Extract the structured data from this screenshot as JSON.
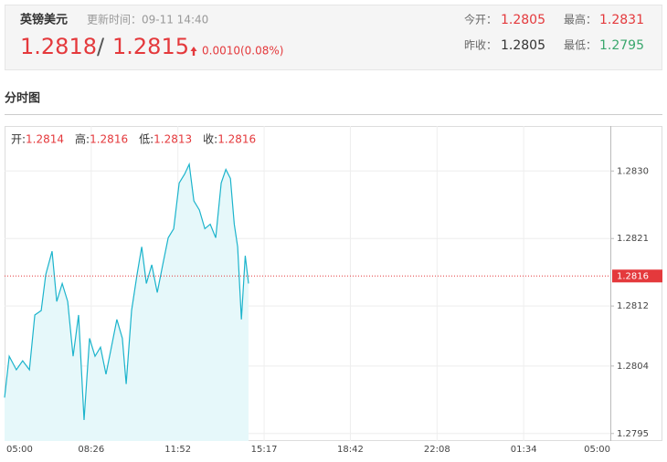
{
  "header": {
    "title": "英镑美元",
    "update_time": "更新时间：09-11 14:40",
    "price": "1.2818",
    "separator": "/",
    "price2": "1.2815",
    "change": "0.0010(0.08%)",
    "stats": [
      {
        "label": "今开：",
        "value": "1.2805"
      },
      {
        "label": "最高：",
        "value": "1.2831"
      },
      {
        "label": "昨收：",
        "value": "1.2805"
      },
      {
        "label": "最低：",
        "value": "1.2795"
      }
    ]
  },
  "section_title": "分时图",
  "chart_data": {
    "type": "line",
    "color": "#1cb4cc",
    "area_color": "#e6f8fa",
    "ohlc": [
      {
        "label": "开:",
        "value": 1.2814
      },
      {
        "label": "高:",
        "value": 1.2816
      },
      {
        "label": "低:",
        "value": 1.2813
      },
      {
        "label": "收:",
        "value": 1.2816
      }
    ],
    "x": [
      0,
      11,
      28,
      43,
      59,
      72,
      87,
      98,
      113,
      124,
      137,
      150,
      163,
      176,
      189,
      202,
      215,
      228,
      241,
      254,
      267,
      280,
      289,
      302,
      315,
      326,
      337,
      350,
      363,
      376,
      389,
      402,
      415,
      428,
      439,
      450,
      463,
      476,
      489,
      502,
      515,
      526,
      537,
      546,
      554,
      563,
      572,
      580
    ],
    "series": [
      {
        "name": "price",
        "values": [
          1.27998,
          1.28053,
          1.28035,
          1.28047,
          1.28035,
          1.28108,
          1.28114,
          1.28162,
          1.28193,
          1.28126,
          1.2815,
          1.28126,
          1.28053,
          1.28108,
          1.27968,
          1.28077,
          1.28053,
          1.28065,
          1.28029,
          1.28065,
          1.28102,
          1.28077,
          1.28016,
          1.28114,
          1.28162,
          1.28199,
          1.2815,
          1.28175,
          1.28138,
          1.28175,
          1.28211,
          1.28223,
          1.28284,
          1.28296,
          1.28309,
          1.2826,
          1.28248,
          1.28223,
          1.28229,
          1.28211,
          1.28284,
          1.28302,
          1.2829,
          1.28229,
          1.28199,
          1.28102,
          1.28187,
          1.2815
        ]
      }
    ],
    "xlim": [
      0,
      1440
    ],
    "xticks": [
      {
        "value": 0,
        "label": "05:00"
      },
      {
        "value": 206,
        "label": "08:26"
      },
      {
        "value": 412,
        "label": "11:52"
      },
      {
        "value": 617,
        "label": "15:17"
      },
      {
        "value": 822,
        "label": "18:42"
      },
      {
        "value": 1028,
        "label": "22:08"
      },
      {
        "value": 1234,
        "label": "01:34"
      },
      {
        "value": 1440,
        "label": "05:00"
      }
    ],
    "ylim": [
      1.2794,
      1.2836
    ],
    "yticks": [
      {
        "value": 1.283,
        "label": "1.2830"
      },
      1.2821,
      1.2812,
      1.2804,
      1.2795
    ],
    "current": 1.2816,
    "current_color": "#e4393c",
    "grid": true
  }
}
